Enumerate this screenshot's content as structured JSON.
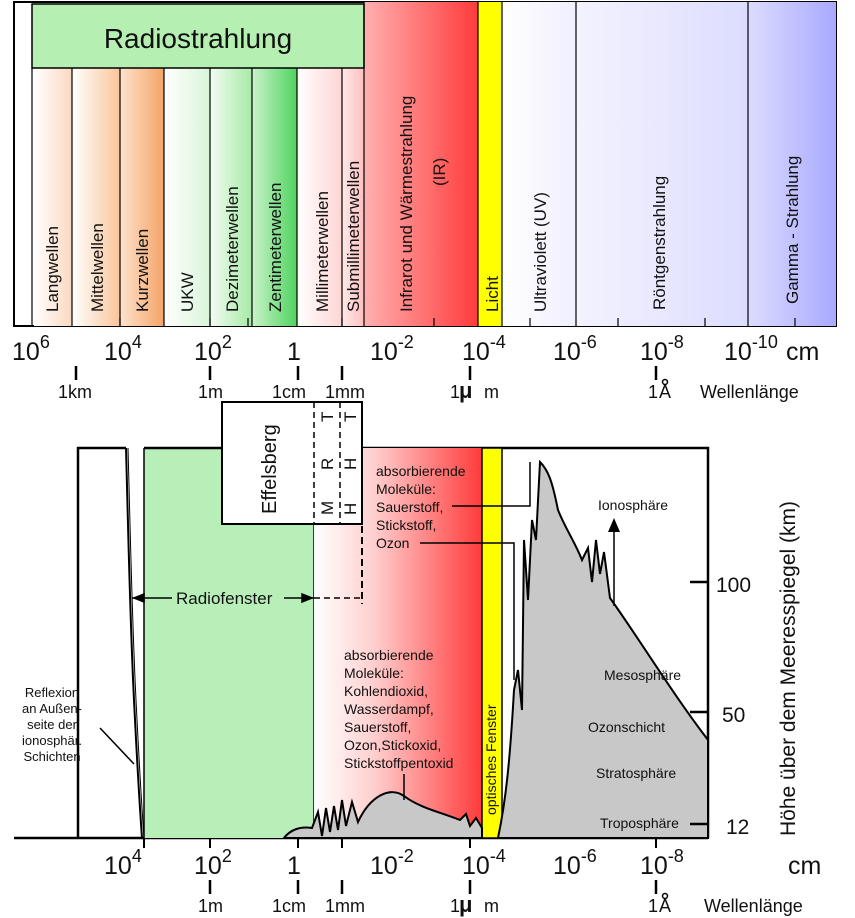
{
  "header": {
    "radio_title": "Radiostrahlung",
    "bands": [
      "Langwellen",
      "Mittelwellen",
      "Kurzwellen",
      "UKW",
      "Dezimeterwellen",
      "Zentimeterwellen",
      "Millimeterwellen",
      "Submillimeterwellen",
      "Infrarot und Wärmestrahlung",
      "(IR)",
      "Licht",
      "Ultraviolett   (UV)",
      "Röntgenstrahlung",
      "Gamma - Strahlung"
    ]
  },
  "top_axis": {
    "exponents": [
      "6",
      "4",
      "2",
      "",
      "-2",
      "-4",
      "-6",
      "-8",
      "-10"
    ],
    "bases": [
      "10",
      "10",
      "10",
      "1",
      "10",
      "10",
      "10",
      "10",
      "10"
    ],
    "unit": "cm",
    "sub_labels": [
      "1km",
      "1m",
      "1cm",
      "1mm",
      "m",
      "m",
      "A",
      "Wellenlänge"
    ]
  },
  "bottom_axis": {
    "exponents": [
      "4",
      "2",
      "",
      "-2",
      "-4",
      "-6",
      "-8"
    ],
    "bases": [
      "10",
      "10",
      "1",
      "10",
      "10",
      "10",
      "10"
    ],
    "unit": "cm",
    "sub_labels": [
      "1m",
      "1cm",
      "1mm",
      "m",
      "A",
      "Wellenlänge"
    ]
  },
  "inset": {
    "name": "Effelsberg",
    "letters": [
      "M",
      "R",
      "T",
      "H",
      "H",
      "T"
    ]
  },
  "labels": {
    "radiofenster": "Radiofenster",
    "optical_window": "optisches Fenster",
    "absorb_top": [
      "absorbierende",
      "Moleküle:",
      "Sauerstoff,",
      "Stickstoff,",
      "Ozon"
    ],
    "absorb_mid": [
      "absorbierende",
      "Moleküle:",
      "Kohlendioxid,",
      "Wasserdampf,",
      "Sauerstoff,",
      "Ozon,Stickoxid,",
      "Stickstoffpentoxid"
    ],
    "reflexion": [
      "Reflexion",
      "an Außen-",
      "seite der",
      "ionosphär.",
      "Schichten"
    ],
    "layers": [
      "Ionosphäre",
      "Mesosphäre",
      "Ozonschicht",
      "Stratosphäre",
      "Troposphäre"
    ]
  },
  "height_axis": {
    "title": "Höhe über dem Meeresspiegel  (km)",
    "ticks": [
      "100",
      "50",
      "12"
    ]
  },
  "colors": {
    "radio_green": "#7fe08a",
    "ir_red": "#ff4a4a",
    "light_yellow": "#ffff00",
    "uv_violet": "#b9b6ff",
    "atmosphere_gray": "#c8c8c8"
  }
}
